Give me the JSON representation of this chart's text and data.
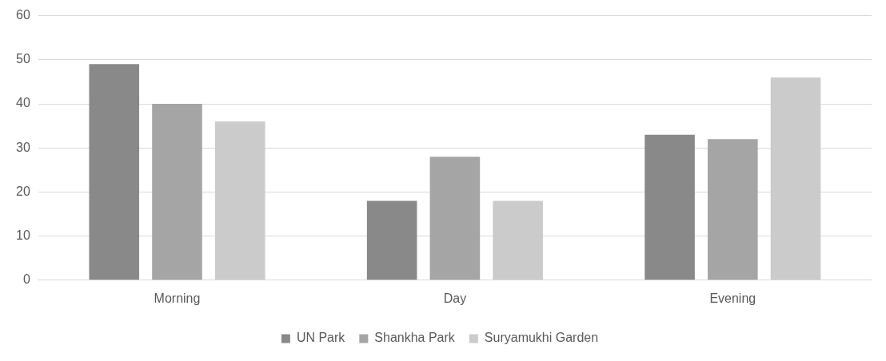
{
  "chart_data": {
    "type": "bar",
    "categories": [
      "Morning",
      "Day",
      "Evening"
    ],
    "series": [
      {
        "name": "UN Park",
        "color": "#898989",
        "values": [
          49,
          18,
          33
        ]
      },
      {
        "name": "Shankha Park",
        "color": "#a5a5a5",
        "values": [
          40,
          28,
          32
        ]
      },
      {
        "name": "Suryamukhi Garden",
        "color": "#cbcbcb",
        "values": [
          36,
          18,
          46
        ]
      }
    ],
    "ylim": [
      0,
      60
    ],
    "yticks": [
      0,
      10,
      20,
      30,
      40,
      50,
      60
    ],
    "grid": "y",
    "legend": "bottom"
  }
}
